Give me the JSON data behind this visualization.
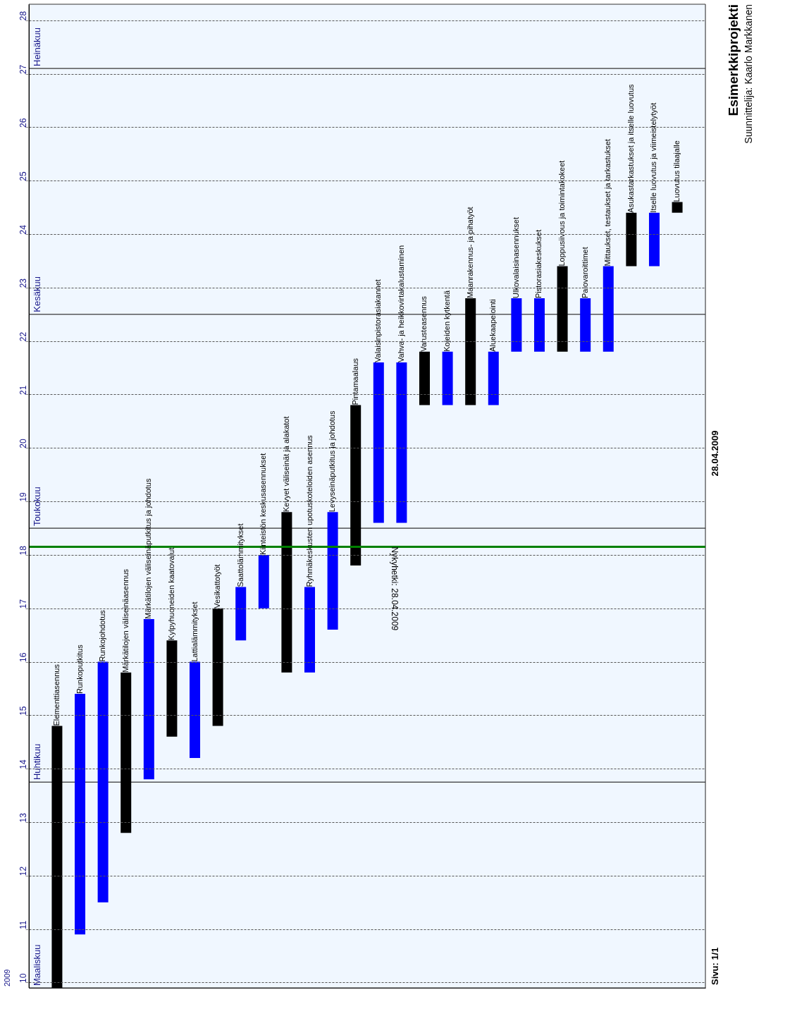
{
  "chart_data": {
    "type": "bar",
    "title": "Esimerkkiprojekti",
    "subtitle": "Suunnittelija: Kaarlo Markkanen",
    "categories": [
      "Elementtiasennus",
      "Runkoputkitus",
      "Runkojohdotus",
      "Märkätilojen väliseinäasennus",
      "Märkätilojen väliseinäputkitus ja johdotus",
      "Kylpyhuoneiden kaatovalut",
      "Lattialämmitykset",
      "Vesikattotyöt",
      "Saattolämmitykset",
      "Kiinteistön keskusasennukset",
      "Kevyet väliseinät ja alakatot",
      "Ryhmäkeskusten upotuskoteloiden asennus",
      "Levyseinäputkitus ja johdotus",
      "Pintamaalaus",
      "Valaisinpistorasiakannet",
      "Vahva- ja heikkovirtakalustaminen",
      "Varusteasennus",
      "Kojeiden kytkentä",
      "Maanrakennus- ja pihatyöt",
      "Aluekaapelointi",
      "Ulkovalaisinasennukset",
      "Pistorasiakeskukset",
      "Loppusiivous ja toimintakokeet",
      "Palovaroittimet",
      "Mittaukset, testaukset ja tarkastukset",
      "Asukastarkastukset ja itselle luovutus",
      "Itselle luovutus ja viimeistelytyöt",
      "Luovutus tilaajalle"
    ],
    "base": [
      9.9,
      10.9,
      11.5,
      12.8,
      13.8,
      14.6,
      14.2,
      14.8,
      16.4,
      17.0,
      15.8,
      15.8,
      16.6,
      17.8,
      18.6,
      18.6,
      20.8,
      20.8,
      20.8,
      20.8,
      21.8,
      21.8,
      21.8,
      21.8,
      21.8,
      23.4,
      23.4,
      24.4
    ],
    "values": [
      4.9,
      4.5,
      4.5,
      3.0,
      3.0,
      1.8,
      1.8,
      2.2,
      1.0,
      1.0,
      3.0,
      1.6,
      2.2,
      3.0,
      3.0,
      3.0,
      1.0,
      1.0,
      2.0,
      1.0,
      1.0,
      1.0,
      1.6,
      1.0,
      1.6,
      1.0,
      1.0,
      0.2
    ],
    "colors": [
      "#000000",
      "#0000ff",
      "#0000ff",
      "#000000",
      "#0000ff",
      "#000000",
      "#0000ff",
      "#000000",
      "#0000ff",
      "#0000ff",
      "#000000",
      "#0000ff",
      "#0000ff",
      "#000000",
      "#0000ff",
      "#0000ff",
      "#000000",
      "#0000ff",
      "#000000",
      "#0000ff",
      "#0000ff",
      "#0000ff",
      "#000000",
      "#0000ff",
      "#0000ff",
      "#000000",
      "#0000ff",
      "#000000"
    ],
    "ylim": [
      9.9,
      28.3
    ],
    "yticks": [
      10,
      11,
      12,
      13,
      14,
      15,
      16,
      17,
      18,
      19,
      20,
      21,
      22,
      23,
      24,
      25,
      26,
      27,
      28
    ],
    "bands": [
      {
        "axis": "y",
        "from": 9.9,
        "to": 13.75,
        "label": "Maaliskuu",
        "color": "#f0f7ff"
      },
      {
        "axis": "y",
        "from": 13.75,
        "to": 18.5,
        "label": "Huhtikuu",
        "color": "#f0f7ff"
      },
      {
        "axis": "y",
        "from": 18.5,
        "to": 22.5,
        "label": "Toukokuu",
        "color": "#f0f7ff"
      },
      {
        "axis": "y",
        "from": 22.5,
        "to": 27.1,
        "label": "Kesäkuu",
        "color": "#f0f7ff"
      },
      {
        "axis": "y",
        "from": 27.1,
        "to": 28.3,
        "label": "Heinäkuu",
        "color": "#f0f7ff"
      }
    ],
    "ref_lines": [
      {
        "axis": "y",
        "value": 18.15,
        "label": "Nykyhetki: 28.04.2009",
        "color": "#008000"
      }
    ],
    "annotations": [
      "2009",
      "28.04.2009",
      "Sivu: 1/1"
    ],
    "grid": "y",
    "tick_labels": "y"
  }
}
